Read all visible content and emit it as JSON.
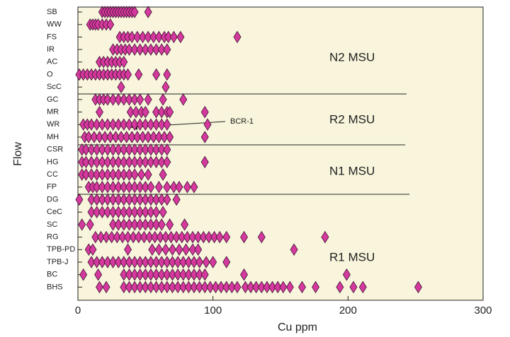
{
  "chart_data": {
    "type": "strip",
    "x_label": "Cu ppm",
    "y_label": "Flow",
    "categories": [
      "SB",
      "WW",
      "FS",
      "IR",
      "AC",
      "O",
      "ScC",
      "GC",
      "MR",
      "WR",
      "MH",
      "CSR",
      "HG",
      "CC",
      "FP",
      "DG",
      "CeC",
      "SC",
      "RG",
      "TPB-PD",
      "TPB-J",
      "BC",
      "BHS"
    ],
    "values": [
      [
        18,
        20,
        22,
        24,
        26,
        28,
        30,
        32,
        34,
        36,
        38,
        40,
        42,
        52
      ],
      [
        9,
        11,
        13,
        15,
        18,
        21,
        24
      ],
      [
        31,
        34,
        37,
        40,
        44,
        48,
        52,
        56,
        60,
        64,
        67,
        71,
        76,
        118
      ],
      [
        26,
        29,
        32,
        35,
        38,
        42,
        46,
        50,
        54,
        58,
        62,
        66
      ],
      [
        16,
        19,
        22,
        25,
        28,
        31,
        34
      ],
      [
        1,
        4,
        7,
        10,
        13,
        16,
        19,
        22,
        25,
        28,
        31,
        34,
        37,
        45,
        58,
        66
      ],
      [
        32,
        65
      ],
      [
        13,
        16,
        19,
        22,
        26,
        30,
        34,
        38,
        42,
        46,
        52,
        63,
        78
      ],
      [
        16,
        39,
        43,
        47,
        50,
        58,
        62,
        66,
        68,
        94
      ],
      [
        4,
        7,
        10,
        14,
        18,
        22,
        26,
        30,
        34,
        38,
        42,
        46,
        50,
        54,
        58,
        62,
        66,
        96
      ],
      [
        5,
        8,
        12,
        16,
        20,
        24,
        28,
        32,
        36,
        40,
        44,
        48,
        52,
        56,
        60,
        64,
        68,
        94
      ],
      [
        3,
        6,
        10,
        14,
        18,
        22,
        26,
        30,
        34,
        38,
        42,
        46,
        50,
        54,
        58,
        62,
        66
      ],
      [
        3,
        6,
        10,
        14,
        18,
        22,
        26,
        30,
        34,
        38,
        42,
        46,
        50,
        54,
        58,
        62,
        66,
        94
      ],
      [
        3,
        6,
        10,
        14,
        18,
        22,
        26,
        30,
        34,
        38,
        42,
        47,
        52,
        63
      ],
      [
        8,
        11,
        14,
        18,
        22,
        26,
        30,
        34,
        38,
        42,
        46,
        50,
        54,
        60,
        66,
        71,
        75,
        81,
        86
      ],
      [
        1,
        10,
        14,
        18,
        22,
        26,
        30,
        34,
        38,
        42,
        46,
        50,
        54,
        58,
        62,
        66,
        73
      ],
      [
        10,
        14,
        18,
        22,
        26,
        30,
        34,
        38,
        42,
        46,
        50,
        54,
        58,
        63
      ],
      [
        3,
        9,
        26,
        30,
        34,
        38,
        42,
        46,
        50,
        54,
        58,
        62,
        68,
        79
      ],
      [
        13,
        17,
        21,
        25,
        29,
        33,
        37,
        41,
        45,
        49,
        53,
        57,
        61,
        65,
        69,
        73,
        77,
        81,
        85,
        89,
        93,
        97,
        101,
        105,
        110,
        123,
        136,
        183
      ],
      [
        8,
        11,
        37,
        55,
        60,
        65,
        70,
        75,
        80,
        85,
        89,
        160
      ],
      [
        10,
        14,
        18,
        22,
        26,
        30,
        34,
        38,
        42,
        46,
        50,
        54,
        58,
        62,
        66,
        70,
        74,
        78,
        82,
        86,
        90,
        95,
        100,
        110
      ],
      [
        4,
        15,
        34,
        38,
        42,
        46,
        50,
        54,
        58,
        62,
        66,
        70,
        74,
        78,
        82,
        86,
        90,
        94,
        123,
        199
      ],
      [
        16,
        21,
        34,
        38,
        42,
        46,
        50,
        54,
        58,
        62,
        66,
        70,
        74,
        78,
        82,
        86,
        90,
        94,
        98,
        102,
        106,
        110,
        114,
        118,
        124,
        128,
        132,
        136,
        140,
        144,
        148,
        152,
        157,
        166,
        176,
        194,
        204,
        211,
        252
      ]
    ],
    "color": "#d6399e",
    "xlim": [
      0,
      300
    ],
    "xticks": [
      0,
      100,
      200,
      300
    ],
    "annotations": [
      "N2 MSU",
      "R2 MSU",
      "N1 MSU",
      "R1 MSU",
      "BCR-1"
    ]
  }
}
